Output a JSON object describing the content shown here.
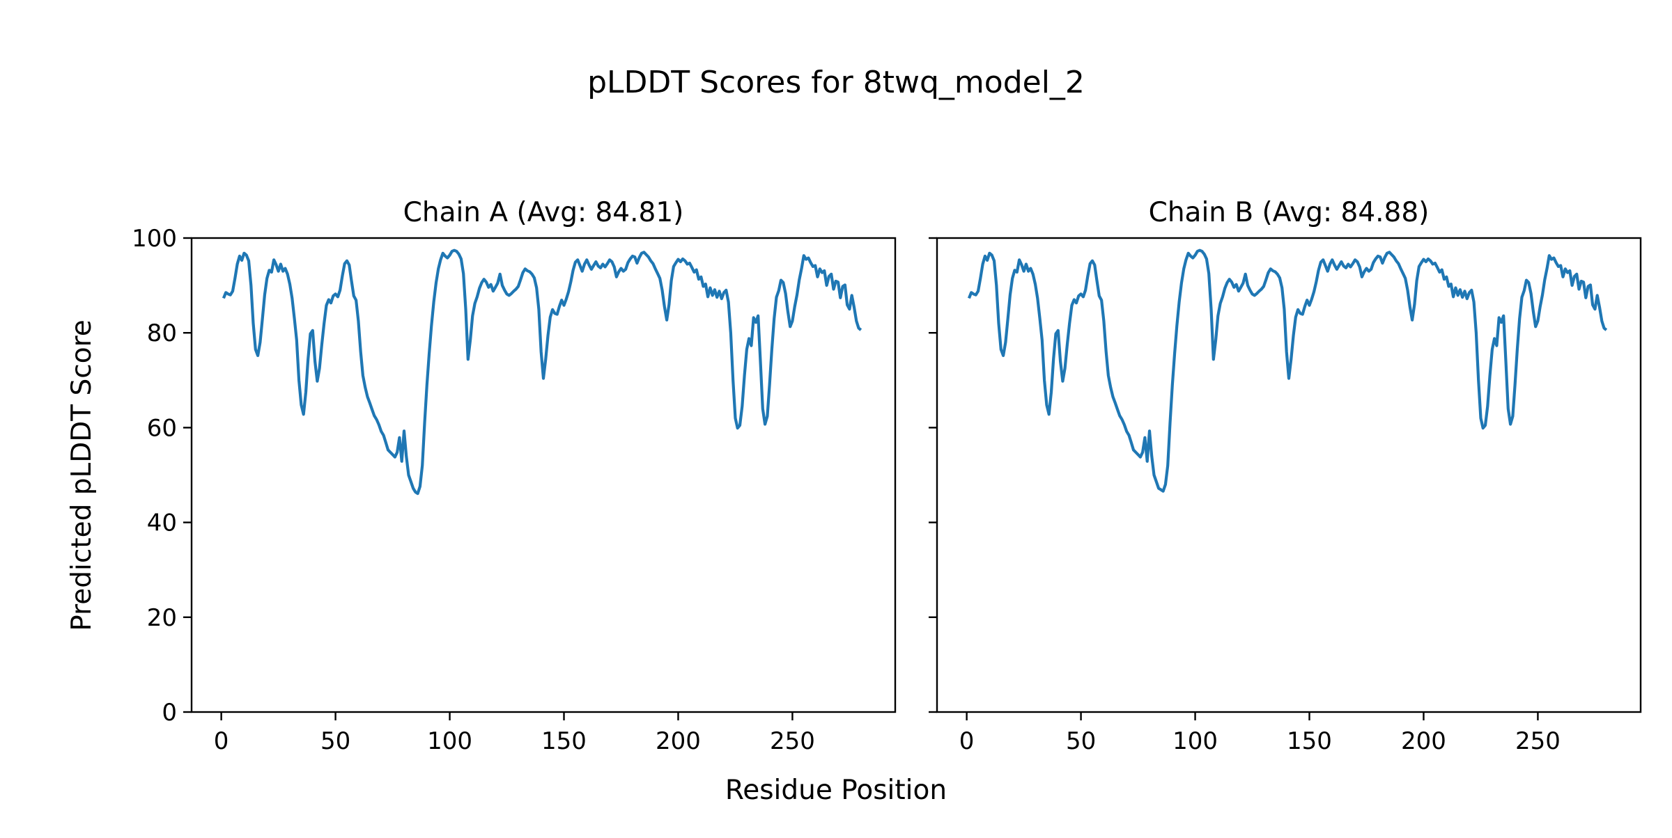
{
  "figure": {
    "title": "pLDDT Scores for 8twq_model_2",
    "xlabel": "Residue Position",
    "ylabel": "Predicted pLDDT Score",
    "background_color": "#ffffff",
    "line_color": "#1f77b4",
    "text_color": "#000000"
  },
  "chart_data": [
    {
      "type": "line",
      "title": "Chain A (Avg: 84.81)",
      "chain": "A",
      "avg_plddt": 84.81,
      "ylabel": "Predicted pLDDT Score",
      "xlabel": "Residue Position",
      "xlim": [
        -13,
        295
      ],
      "ylim": [
        0,
        100
      ],
      "x_ticks": [
        0,
        50,
        100,
        150,
        200,
        250
      ],
      "y_ticks": [
        0,
        20,
        40,
        60,
        80,
        100
      ],
      "y_tick_labels_visible": true,
      "grid": false,
      "legend": "none",
      "x_start": 1,
      "x_step": 1,
      "y": [
        87.3,
        88.5,
        88.2,
        88.0,
        88.8,
        91.5,
        94.5,
        96.2,
        95.3,
        96.8,
        96.4,
        95.2,
        90.0,
        82.0,
        76.5,
        75.2,
        78.0,
        83.0,
        88.0,
        91.5,
        93.2,
        92.8,
        95.4,
        94.4,
        93.0,
        94.5,
        93.0,
        93.6,
        92.4,
        90.3,
        87.3,
        83.0,
        78.5,
        70.0,
        64.8,
        62.8,
        67.5,
        74.5,
        79.8,
        80.5,
        74.0,
        69.8,
        72.5,
        77.5,
        82.0,
        85.8,
        87.0,
        86.3,
        87.8,
        88.2,
        87.6,
        89.0,
        92.0,
        94.6,
        95.2,
        94.3,
        91.0,
        87.8,
        86.9,
        82.5,
        76.0,
        71.0,
        68.5,
        66.5,
        65.2,
        63.8,
        62.5,
        61.7,
        60.6,
        59.2,
        58.4,
        56.9,
        55.3,
        54.8,
        54.3,
        53.8,
        54.8,
        57.9,
        52.9,
        59.3,
        54.0,
        50.0,
        48.6,
        47.2,
        46.4,
        46.1,
        47.6,
        52.0,
        61.0,
        69.0,
        75.5,
        81.5,
        86.5,
        90.5,
        93.5,
        95.4,
        96.8,
        96.2,
        95.8,
        96.4,
        97.2,
        97.4,
        97.2,
        96.6,
        95.6,
        92.5,
        85.0,
        74.4,
        78.5,
        83.6,
        86.2,
        87.6,
        89.4,
        90.6,
        91.3,
        90.7,
        89.6,
        90.2,
        88.8,
        89.6,
        90.5,
        92.4,
        90.0,
        89.0,
        88.2,
        87.9,
        88.3,
        88.8,
        89.2,
        89.8,
        91.2,
        92.7,
        93.5,
        93.1,
        92.9,
        92.4,
        91.6,
        89.5,
        85.0,
        76.0,
        70.4,
        74.5,
        79.5,
        83.3,
        84.9,
        84.1,
        83.9,
        85.6,
        86.9,
        85.8,
        87.1,
        88.7,
        90.8,
        93.2,
        94.9,
        95.4,
        94.2,
        93.0,
        94.5,
        95.4,
        94.3,
        93.4,
        94.2,
        95.0,
        94.1,
        93.7,
        94.5,
        93.9,
        94.6,
        95.4,
        95.0,
        93.9,
        91.8,
        92.9,
        93.6,
        93.0,
        93.4,
        94.8,
        95.6,
        96.2,
        96.0,
        94.7,
        95.9,
        96.8,
        97.0,
        96.5,
        96.0,
        95.2,
        94.6,
        93.5,
        92.5,
        91.5,
        89.0,
        85.5,
        82.7,
        86.0,
        91.0,
        94.0,
        94.8,
        95.5,
        95.0,
        95.6,
        95.2,
        94.5,
        94.7,
        93.8,
        92.8,
        93.3,
        91.3,
        91.8,
        89.8,
        90.3,
        87.6,
        89.5,
        87.9,
        89.1,
        87.5,
        88.8,
        87.2,
        88.5,
        89.0,
        86.5,
        80.0,
        70.0,
        62.0,
        59.9,
        60.5,
        64.5,
        71.0,
        76.5,
        78.8,
        77.3,
        83.2,
        82.2,
        83.6,
        74.0,
        64.0,
        60.7,
        62.4,
        69.0,
        76.5,
        83.0,
        87.5,
        88.9,
        91.1,
        90.6,
        88.3,
        84.5,
        81.3,
        82.5,
        85.5,
        88.0,
        91.2,
        93.6,
        96.3,
        95.5,
        95.8,
        94.8,
        94.0,
        94.2,
        91.8,
        93.5,
        92.7,
        93.1,
        90.0,
        91.9,
        92.4,
        89.2,
        90.9,
        90.7,
        87.4,
        89.8,
        90.1,
        85.9,
        85.0,
        87.9,
        85.4,
        82.5,
        81.0,
        80.6
      ]
    },
    {
      "type": "line",
      "title": "Chain B (Avg: 84.88)",
      "chain": "B",
      "avg_plddt": 84.88,
      "ylabel": "Predicted pLDDT Score",
      "xlabel": "Residue Position",
      "xlim": [
        -13,
        295
      ],
      "ylim": [
        0,
        100
      ],
      "x_ticks": [
        0,
        50,
        100,
        150,
        200,
        250
      ],
      "y_ticks": [
        0,
        20,
        40,
        60,
        80,
        100
      ],
      "y_tick_labels_visible": false,
      "grid": false,
      "legend": "none",
      "x_start": 1,
      "x_step": 1,
      "y": [
        87.3,
        88.5,
        88.2,
        88.0,
        88.8,
        91.5,
        94.5,
        96.2,
        95.3,
        96.8,
        96.4,
        95.2,
        90.0,
        82.0,
        76.5,
        75.2,
        78.0,
        83.0,
        88.0,
        91.5,
        93.2,
        92.8,
        95.4,
        94.4,
        93.0,
        94.5,
        93.0,
        93.6,
        92.4,
        90.3,
        87.3,
        83.0,
        78.5,
        70.0,
        64.8,
        62.8,
        67.5,
        74.5,
        79.8,
        80.5,
        74.0,
        69.8,
        72.5,
        77.5,
        82.0,
        85.8,
        87.0,
        86.3,
        87.8,
        88.2,
        87.6,
        89.0,
        92.0,
        94.6,
        95.2,
        94.3,
        91.0,
        87.8,
        86.9,
        82.5,
        76.0,
        71.0,
        68.5,
        66.5,
        65.2,
        63.8,
        62.5,
        61.7,
        60.6,
        59.2,
        58.4,
        56.9,
        55.3,
        54.8,
        54.3,
        53.8,
        54.8,
        57.9,
        52.9,
        59.3,
        54.0,
        50.0,
        48.6,
        47.2,
        46.9,
        46.6,
        48.0,
        52.0,
        61.0,
        69.0,
        75.5,
        81.5,
        86.5,
        90.5,
        93.5,
        95.4,
        96.8,
        96.2,
        95.8,
        96.4,
        97.2,
        97.4,
        97.2,
        96.6,
        95.6,
        92.5,
        85.0,
        74.4,
        78.5,
        83.6,
        86.2,
        87.6,
        89.4,
        90.6,
        91.3,
        90.7,
        89.6,
        90.2,
        88.8,
        89.6,
        90.5,
        92.4,
        90.0,
        89.0,
        88.2,
        87.9,
        88.3,
        88.8,
        89.2,
        89.8,
        91.2,
        92.7,
        93.5,
        93.1,
        92.9,
        92.4,
        91.6,
        89.5,
        85.0,
        76.0,
        70.4,
        74.5,
        79.5,
        83.3,
        84.9,
        84.1,
        83.9,
        85.6,
        86.9,
        85.8,
        87.1,
        88.7,
        90.8,
        93.2,
        94.9,
        95.4,
        94.2,
        93.0,
        94.5,
        95.4,
        94.3,
        93.4,
        94.2,
        95.0,
        94.1,
        93.7,
        94.5,
        93.9,
        94.6,
        95.4,
        95.0,
        93.9,
        91.8,
        92.9,
        93.6,
        93.0,
        93.4,
        94.8,
        95.6,
        96.2,
        96.0,
        94.7,
        95.9,
        96.8,
        97.0,
        96.5,
        96.0,
        95.2,
        94.6,
        93.5,
        92.5,
        91.5,
        89.0,
        85.5,
        82.7,
        86.0,
        91.0,
        94.0,
        94.8,
        95.5,
        95.0,
        95.6,
        95.2,
        94.5,
        94.7,
        93.8,
        92.8,
        93.3,
        91.3,
        91.8,
        89.8,
        90.3,
        87.6,
        89.5,
        87.9,
        89.1,
        87.5,
        88.8,
        87.2,
        88.5,
        89.0,
        86.5,
        80.0,
        70.0,
        62.0,
        59.9,
        60.5,
        64.5,
        71.0,
        76.5,
        78.8,
        77.3,
        83.2,
        82.2,
        83.6,
        74.0,
        64.0,
        60.7,
        62.4,
        69.0,
        76.5,
        83.0,
        87.5,
        88.9,
        91.1,
        90.6,
        88.3,
        84.5,
        81.3,
        82.5,
        85.5,
        88.0,
        91.2,
        93.6,
        96.3,
        95.5,
        95.8,
        94.8,
        94.0,
        94.2,
        91.8,
        93.5,
        92.7,
        93.1,
        90.0,
        91.9,
        92.4,
        89.2,
        90.9,
        90.7,
        87.4,
        89.8,
        90.1,
        85.9,
        85.0,
        87.9,
        85.4,
        82.5,
        81.0,
        80.6
      ]
    }
  ]
}
